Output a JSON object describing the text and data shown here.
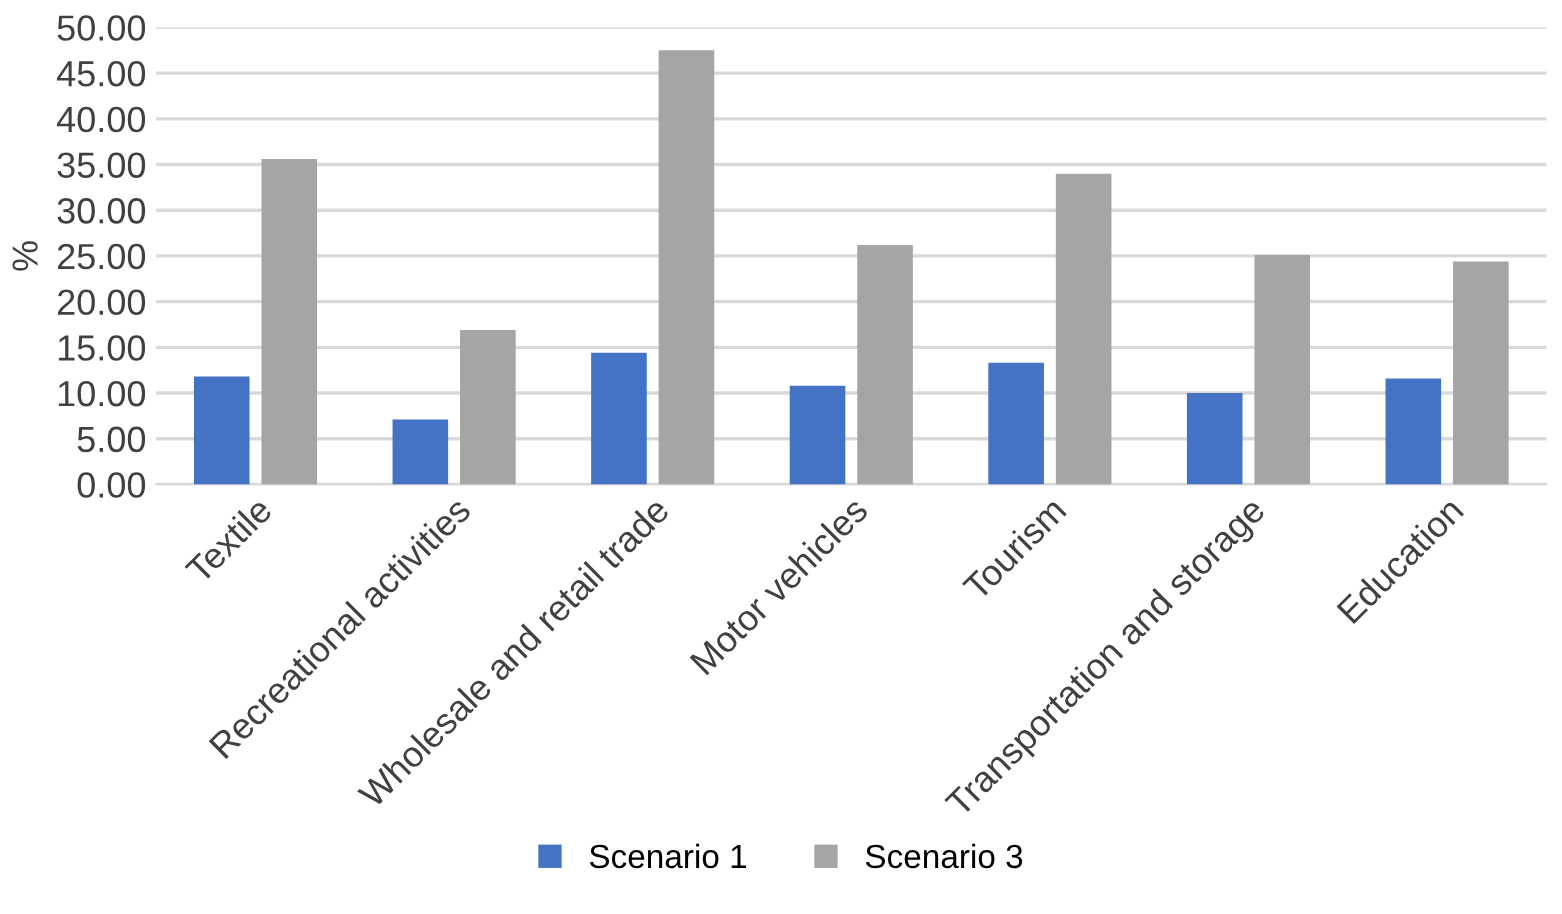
{
  "chart_data": {
    "type": "bar",
    "ylabel": "%",
    "categories": [
      "Textile",
      "Recreational activities",
      "Wholesale and retail trade",
      "Motor vehicles",
      "Tourism",
      "Transportation and storage",
      "Education"
    ],
    "series": [
      {
        "name": "Scenario 1",
        "color": "#4472c4",
        "values": [
          11.8,
          7.1,
          14.4,
          10.8,
          13.3,
          10.0,
          11.6
        ]
      },
      {
        "name": "Scenario 3",
        "color": "#a5a5a5",
        "values": [
          35.6,
          16.9,
          47.5,
          26.2,
          34.0,
          25.1,
          24.4
        ]
      }
    ],
    "ylim": [
      0,
      50
    ],
    "yticks": [
      {
        "value": 0,
        "label": "0.00"
      },
      {
        "value": 5,
        "label": "5.00"
      },
      {
        "value": 10,
        "label": "10.00"
      },
      {
        "value": 15,
        "label": "15.00"
      },
      {
        "value": 20,
        "label": "20.00"
      },
      {
        "value": 25,
        "label": "25.00"
      },
      {
        "value": 30,
        "label": "30.00"
      },
      {
        "value": 35,
        "label": "35.00"
      },
      {
        "value": 40,
        "label": "40.00"
      },
      {
        "value": 45,
        "label": "45.00"
      },
      {
        "value": 50,
        "label": "50.00"
      }
    ],
    "grid": "y",
    "legend": "bottom"
  }
}
